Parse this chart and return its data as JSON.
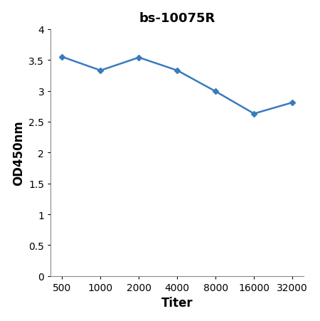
{
  "title": "bs-10075R",
  "xlabel": "Titer",
  "ylabel": "OD450nm",
  "x_values": [
    500,
    1000,
    2000,
    4000,
    8000,
    16000,
    32000
  ],
  "y_values": [
    3.55,
    3.33,
    3.54,
    3.33,
    2.99,
    2.63,
    2.81
  ],
  "line_color": "#3a7abf",
  "marker": "D",
  "marker_size": 4,
  "line_width": 1.8,
  "ylim": [
    0,
    4.0
  ],
  "yticks": [
    0,
    0.5,
    1.0,
    1.5,
    2.0,
    2.5,
    3.0,
    3.5,
    4.0
  ],
  "ytick_labels": [
    "0",
    "0.5",
    "1",
    "1.5",
    "2",
    "2.5",
    "3",
    "3.5",
    "4"
  ],
  "xtick_labels": [
    "500",
    "1000",
    "2000",
    "4000",
    "8000",
    "16000",
    "32000"
  ],
  "title_fontsize": 13,
  "axis_label_fontsize": 12,
  "tick_fontsize": 10,
  "background_color": "#ffffff"
}
